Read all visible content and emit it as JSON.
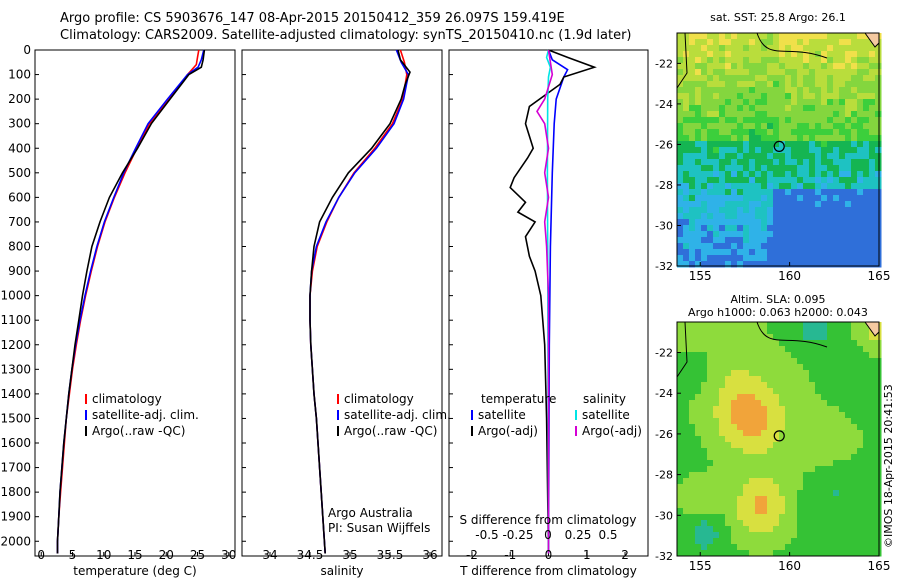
{
  "header": {
    "line1": "Argo profile: CS 5903676_147 08-Apr-2015 20150412_359 26.097S 159.419E",
    "line2": "Climatology: CARS2009. Satellite-adjusted climatology: synTS_20150410.nc (1.9d later)"
  },
  "credit": "©IMOS 18-Apr-2015 20:41:53",
  "chart_data": [
    {
      "id": "temperature",
      "type": "line",
      "xlabel": "temperature (deg C)",
      "ylabel": "",
      "xlim": [
        -1,
        31
      ],
      "ylim": [
        2060,
        0
      ],
      "y_reversed": true,
      "xticks": [
        0,
        5,
        10,
        15,
        20,
        25,
        30
      ],
      "yticks": [
        0,
        100,
        200,
        300,
        400,
        500,
        600,
        700,
        800,
        900,
        1000,
        1100,
        1200,
        1300,
        1400,
        1500,
        1600,
        1700,
        1800,
        1900,
        2000
      ],
      "legend": {
        "placement": "center-left",
        "items": [
          "climatology",
          "satellite-adj. clim.",
          "Argo(..raw -QC)"
        ]
      },
      "series": [
        {
          "name": "climatology",
          "color": "#ff0000",
          "points": [
            [
              25.2,
              0
            ],
            [
              25,
              30
            ],
            [
              24.8,
              60
            ],
            [
              23.4,
              100
            ],
            [
              20.5,
              200
            ],
            [
              17.3,
              300
            ],
            [
              15.3,
              400
            ],
            [
              13.4,
              500
            ],
            [
              11.7,
              600
            ],
            [
              10.2,
              700
            ],
            [
              9.0,
              800
            ],
            [
              8.0,
              900
            ],
            [
              7.1,
              1000
            ],
            [
              6.3,
              1100
            ],
            [
              5.6,
              1200
            ],
            [
              5.0,
              1300
            ],
            [
              4.5,
              1400
            ],
            [
              4.0,
              1500
            ],
            [
              3.7,
              1600
            ],
            [
              3.4,
              1700
            ],
            [
              3.1,
              1800
            ],
            [
              2.8,
              1900
            ],
            [
              2.6,
              2000
            ],
            [
              2.6,
              2050
            ]
          ]
        },
        {
          "name": "satellite-adj. clim.",
          "color": "#0000ff",
          "points": [
            [
              26.0,
              0
            ],
            [
              25.6,
              40
            ],
            [
              25.1,
              70
            ],
            [
              23.4,
              100
            ],
            [
              20.2,
              200
            ],
            [
              17.1,
              300
            ],
            [
              15.1,
              400
            ],
            [
              13.2,
              500
            ],
            [
              11.6,
              600
            ],
            [
              10.1,
              700
            ],
            [
              8.9,
              800
            ],
            [
              7.9,
              900
            ],
            [
              7.0,
              1000
            ],
            [
              6.2,
              1100
            ],
            [
              5.5,
              1200
            ],
            [
              4.9,
              1300
            ],
            [
              4.4,
              1400
            ],
            [
              4.0,
              1500
            ],
            [
              3.6,
              1600
            ],
            [
              3.3,
              1700
            ],
            [
              3.0,
              1800
            ],
            [
              2.8,
              1900
            ],
            [
              2.6,
              2000
            ],
            [
              2.6,
              2050
            ]
          ]
        },
        {
          "name": "Argo(..raw -QC)",
          "color": "#000000",
          "points": [
            [
              26.1,
              0
            ],
            [
              25.9,
              40
            ],
            [
              25.6,
              70
            ],
            [
              23.6,
              100
            ],
            [
              20.6,
              200
            ],
            [
              17.6,
              300
            ],
            [
              15.4,
              400
            ],
            [
              13.0,
              500
            ],
            [
              10.9,
              600
            ],
            [
              9.4,
              700
            ],
            [
              8.1,
              800
            ],
            [
              7.3,
              900
            ],
            [
              6.6,
              1000
            ],
            [
              6.0,
              1100
            ],
            [
              5.4,
              1200
            ],
            [
              4.9,
              1300
            ],
            [
              4.4,
              1400
            ],
            [
              4.0,
              1500
            ],
            [
              3.6,
              1600
            ],
            [
              3.3,
              1700
            ],
            [
              3.0,
              1800
            ],
            [
              2.8,
              1900
            ],
            [
              2.6,
              2000
            ],
            [
              2.6,
              2050
            ]
          ]
        }
      ]
    },
    {
      "id": "salinity",
      "type": "line",
      "xlabel": "salinity",
      "xlim": [
        33.65,
        36.15
      ],
      "ylim": [
        2060,
        0
      ],
      "y_reversed": true,
      "xticks": [
        34,
        34.5,
        35,
        35.5,
        36
      ],
      "legend": {
        "placement": "center-right",
        "items": [
          "climatology",
          "satellite-adj. clim.",
          "Argo(..raw -QC)"
        ]
      },
      "annotations": [
        "Argo Australia",
        "PI: Susan Wijffels"
      ],
      "series": [
        {
          "name": "climatology",
          "color": "#ff0000",
          "points": [
            [
              35.63,
              0
            ],
            [
              35.68,
              50
            ],
            [
              35.71,
              100
            ],
            [
              35.66,
              200
            ],
            [
              35.53,
              300
            ],
            [
              35.31,
              400
            ],
            [
              35.05,
              500
            ],
            [
              34.86,
              600
            ],
            [
              34.71,
              700
            ],
            [
              34.59,
              800
            ],
            [
              34.53,
              900
            ],
            [
              34.5,
              1000
            ],
            [
              34.5,
              1100
            ],
            [
              34.51,
              1200
            ],
            [
              34.53,
              1300
            ],
            [
              34.55,
              1400
            ],
            [
              34.58,
              1500
            ],
            [
              34.6,
              1600
            ],
            [
              34.62,
              1700
            ],
            [
              34.64,
              1800
            ],
            [
              34.66,
              1900
            ],
            [
              34.68,
              2000
            ],
            [
              34.69,
              2050
            ]
          ]
        },
        {
          "name": "satellite-adj. clim.",
          "color": "#0000ff",
          "points": [
            [
              35.58,
              0
            ],
            [
              35.64,
              50
            ],
            [
              35.73,
              100
            ],
            [
              35.67,
              200
            ],
            [
              35.55,
              300
            ],
            [
              35.33,
              400
            ],
            [
              35.06,
              500
            ],
            [
              34.86,
              600
            ],
            [
              34.7,
              700
            ],
            [
              34.58,
              800
            ],
            [
              34.52,
              900
            ],
            [
              34.5,
              1000
            ],
            [
              34.5,
              1100
            ],
            [
              34.51,
              1200
            ],
            [
              34.53,
              1300
            ],
            [
              34.55,
              1400
            ],
            [
              34.58,
              1500
            ],
            [
              34.6,
              1600
            ],
            [
              34.62,
              1700
            ],
            [
              34.64,
              1800
            ],
            [
              34.66,
              1900
            ],
            [
              34.68,
              2000
            ],
            [
              34.69,
              2050
            ]
          ]
        },
        {
          "name": "Argo(..raw -QC)",
          "color": "#000000",
          "points": [
            [
              35.6,
              0
            ],
            [
              35.63,
              40
            ],
            [
              35.75,
              90
            ],
            [
              35.69,
              140
            ],
            [
              35.64,
              200
            ],
            [
              35.5,
              300
            ],
            [
              35.27,
              400
            ],
            [
              34.98,
              500
            ],
            [
              34.78,
              600
            ],
            [
              34.62,
              700
            ],
            [
              34.55,
              800
            ],
            [
              34.52,
              900
            ],
            [
              34.5,
              1000
            ],
            [
              34.5,
              1100
            ],
            [
              34.51,
              1200
            ],
            [
              34.53,
              1300
            ],
            [
              34.55,
              1400
            ],
            [
              34.58,
              1500
            ],
            [
              34.6,
              1600
            ],
            [
              34.62,
              1700
            ],
            [
              34.64,
              1800
            ],
            [
              34.66,
              1900
            ],
            [
              34.68,
              2000
            ],
            [
              34.69,
              2050
            ]
          ]
        }
      ]
    },
    {
      "id": "difference",
      "type": "line",
      "xlabel": "T difference from climatology",
      "xlabel2": "S difference from climatology",
      "xlim": [
        -2.6,
        2.6
      ],
      "ylim": [
        2060,
        0
      ],
      "y_reversed": true,
      "xticks": [
        -2,
        -1,
        0,
        1,
        2
      ],
      "xticks_S": [
        "-0.5",
        "-0.25",
        "0",
        "0.25",
        "0.5"
      ],
      "legend": {
        "placement": "center",
        "items": [
          "temperature",
          "satellite",
          "Argo(-adj)",
          "salinity",
          "satellite",
          "Argo(-adj)"
        ]
      },
      "series": [
        {
          "name": "temperature satellite",
          "color": "#0000ff",
          "points": [
            [
              0,
              0
            ],
            [
              0.1,
              40
            ],
            [
              0.5,
              80
            ],
            [
              0.4,
              110
            ],
            [
              0.2,
              200
            ],
            [
              0.15,
              300
            ],
            [
              0.1,
              500
            ],
            [
              0.05,
              800
            ],
            [
              0.02,
              1200
            ],
            [
              0.0,
              2050
            ]
          ]
        },
        {
          "name": "temperature Argo(-adj)",
          "color": "#000000",
          "points": [
            [
              0,
              0
            ],
            [
              0.5,
              30
            ],
            [
              1.2,
              70
            ],
            [
              0.4,
              110
            ],
            [
              0.3,
              140
            ],
            [
              -0.5,
              230
            ],
            [
              -0.6,
              300
            ],
            [
              -0.4,
              400
            ],
            [
              -0.55,
              440
            ],
            [
              -0.9,
              520
            ],
            [
              -1.0,
              560
            ],
            [
              -0.6,
              620
            ],
            [
              -0.8,
              660
            ],
            [
              -0.35,
              700
            ],
            [
              -0.6,
              760
            ],
            [
              -0.5,
              840
            ],
            [
              -0.35,
              900
            ],
            [
              -0.2,
              1000
            ],
            [
              -0.1,
              1200
            ],
            [
              -0.05,
              1500
            ],
            [
              0,
              2050
            ]
          ]
        },
        {
          "name": "salinity satellite",
          "color": "#00e5e5",
          "points": [
            [
              0,
              0
            ],
            [
              -0.05,
              30
            ],
            [
              0.05,
              70
            ],
            [
              0.0,
              110
            ],
            [
              -0.02,
              200
            ],
            [
              -0.03,
              500
            ],
            [
              -0.02,
              800
            ],
            [
              0.0,
              2050
            ]
          ]
        },
        {
          "name": "salinity Argo(-adj)",
          "color": "#d400d4",
          "points": [
            [
              0,
              0
            ],
            [
              0.05,
              50
            ],
            [
              0.1,
              100
            ],
            [
              -0.1,
              200
            ],
            [
              -0.3,
              250
            ],
            [
              -0.1,
              300
            ],
            [
              0.0,
              400
            ],
            [
              -0.1,
              500
            ],
            [
              0.0,
              600
            ],
            [
              -0.1,
              700
            ],
            [
              -0.05,
              800
            ],
            [
              0,
              1000
            ],
            [
              0,
              2050
            ]
          ]
        }
      ]
    },
    {
      "id": "sst-map",
      "type": "heatmap",
      "title": "sat. SST: 25.8 Argo: 26.1",
      "xlim": [
        153.7,
        165
      ],
      "ylim": [
        -32,
        -20.5
      ],
      "xticks": [
        155,
        160,
        165
      ],
      "yticks": [
        -22,
        -24,
        -26,
        -28,
        -30,
        -32
      ],
      "marker": [
        159.419,
        -26.097
      ],
      "colors": [
        "#2f6fd9",
        "#2fb2e8",
        "#1ec2c2",
        "#15b552",
        "#3ccf3c",
        "#84d63e",
        "#b9dd3c",
        "#f0e04a",
        "#f2bf3a"
      ]
    },
    {
      "id": "sla-map",
      "type": "heatmap",
      "title": "Altim. SLA: 0.095",
      "subtitle": "Argo h1000: 0.063 h2000: 0.043",
      "xlim": [
        153.7,
        165
      ],
      "ylim": [
        -32,
        -20.5
      ],
      "xticks": [
        155,
        160,
        165
      ],
      "yticks": [
        -22,
        -24,
        -26,
        -28,
        -30,
        -32
      ],
      "marker": [
        159.419,
        -26.097
      ],
      "colors": [
        "#2ec7e6",
        "#27b892",
        "#35c235",
        "#8edb3c",
        "#d8e040",
        "#f1a43a",
        "#e85a2a",
        "#c9252a"
      ]
    }
  ]
}
